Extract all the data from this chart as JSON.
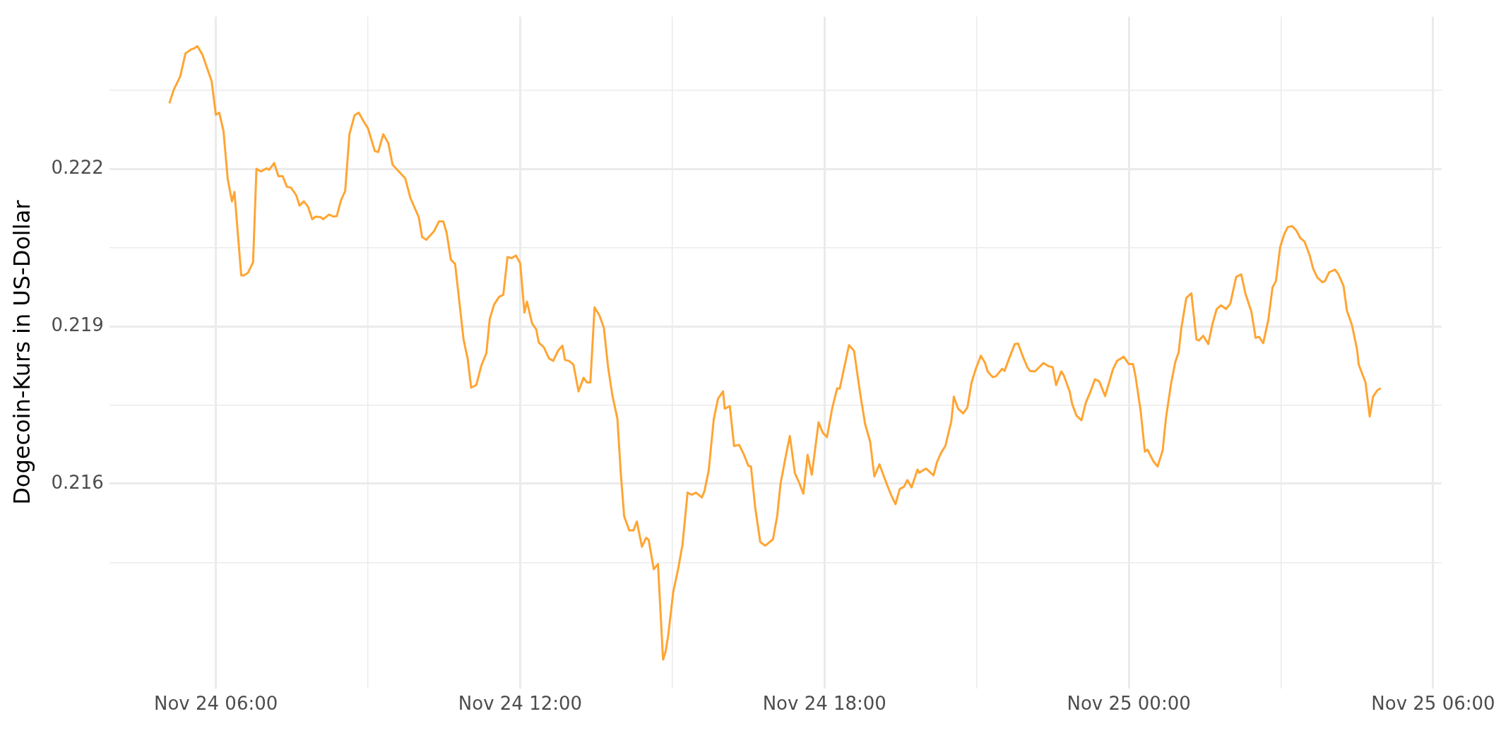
{
  "chart_data": {
    "type": "line",
    "ylabel": "Dogecoin-Kurs in US-Dollar",
    "color": "#ffa533",
    "grid": true,
    "xlim": [
      "--11-24T03:54",
      "--11-25T06:10"
    ],
    "ylim": [
      0.2121,
      0.2249
    ],
    "xticks": [
      {
        "value": "--11-24T06:00",
        "label": "Nov 24 06:00"
      },
      {
        "value": "--11-24T09:00",
        "label": null
      },
      {
        "value": "--11-24T12:00",
        "label": "Nov 24 12:00"
      },
      {
        "value": "--11-24T15:00",
        "label": null
      },
      {
        "value": "--11-24T18:00",
        "label": "Nov 24 18:00"
      },
      {
        "value": "--11-24T21:00",
        "label": null
      },
      {
        "value": "--11-25T00:00",
        "label": "Nov 25 00:00"
      },
      {
        "value": "--11-25T03:00",
        "label": null
      },
      {
        "value": "--11-25T06:00",
        "label": "Nov 25 06:00"
      }
    ],
    "yticks": [
      {
        "value": 0.2145,
        "label": null
      },
      0.216,
      {
        "value": 0.2175,
        "label": null
      },
      0.219,
      {
        "value": 0.2205,
        "label": null
      },
      0.222,
      {
        "value": 0.2235,
        "label": null
      }
    ],
    "x": [
      "--11-24T05:05",
      "--11-24T05:10",
      "--11-24T05:18",
      "--11-24T05:24",
      "--11-24T05:30",
      "--11-24T05:35",
      "--11-24T05:38",
      "--11-24T05:44",
      "--11-24T05:55",
      "--11-24T06:00",
      "--11-24T06:04",
      "--11-24T06:09",
      "--11-24T06:14",
      "--11-24T06:19",
      "--11-24T06:22",
      "--11-24T06:30",
      "--11-24T06:33",
      "--11-24T06:38",
      "--11-24T06:44",
      "--11-24T06:48",
      "--11-24T06:53",
      "--11-24T07:00",
      "--11-24T07:03",
      "--11-24T07:09",
      "--11-24T07:14",
      "--11-24T07:19",
      "--11-24T07:24",
      "--11-24T07:29",
      "--11-24T07:35",
      "--11-24T07:39",
      "--11-24T07:44",
      "--11-24T07:49",
      "--11-24T07:54",
      "--11-24T07:58",
      "--11-24T08:04",
      "--11-24T08:07",
      "--11-24T08:14",
      "--11-24T08:19",
      "--11-24T08:23",
      "--11-24T08:28",
      "--11-24T08:33",
      "--11-24T08:38",
      "--11-24T08:44",
      "--11-24T08:49",
      "--11-24T08:55",
      "--11-24T09:00",
      "--11-24T09:08",
      "--11-24T09:12",
      "--11-24T09:18",
      "--11-24T09:24",
      "--11-24T09:29",
      "--11-24T09:44",
      "--11-24T09:50",
      "--11-24T10:00",
      "--11-24T10:04",
      "--11-24T10:09",
      "--11-24T10:18",
      "--11-24T10:24",
      "--11-24T10:29",
      "--11-24T10:33",
      "--11-24T10:38",
      "--11-24T10:43",
      "--11-24T10:53",
      "--11-24T10:58",
      "--11-24T11:02",
      "--11-24T11:08",
      "--11-24T11:14",
      "--11-24T11:20",
      "--11-24T11:24",
      "--11-24T11:29",
      "--11-24T11:35",
      "--11-24T11:40",
      "--11-24T11:45",
      "--11-24T11:50",
      "--11-24T11:55",
      "--11-24T12:00",
      "--11-24T12:05",
      "--11-24T12:08",
      "--11-24T12:14",
      "--11-24T12:19",
      "--11-24T12:22",
      "--11-24T12:28",
      "--11-24T12:34",
      "--11-24T12:39",
      "--11-24T12:45",
      "--11-24T12:50",
      "--11-24T12:53",
      "--11-24T12:58",
      "--11-24T13:03",
      "--11-24T13:09",
      "--11-24T13:15",
      "--11-24T13:19",
      "--11-24T13:23",
      "--11-24T13:28",
      "--11-24T13:34",
      "--11-24T13:39",
      "--11-24T13:44",
      "--11-24T13:49",
      "--11-24T13:55",
      "--11-24T13:59",
      "--11-24T14:03",
      "--11-24T14:09",
      "--11-24T14:14",
      "--11-24T14:18",
      "--11-24T14:24",
      "--11-24T14:29",
      "--11-24T14:32",
      "--11-24T14:38",
      "--11-24T14:43",
      "--11-24T14:49",
      "--11-24T14:52",
      "--11-24T14:55",
      "--11-24T15:01",
      "--11-24T15:07",
      "--11-24T15:12",
      "--11-24T15:18",
      "--11-24T15:23",
      "--11-24T15:28",
      "--11-24T15:35",
      "--11-24T15:38",
      "--11-24T15:43",
      "--11-24T15:49",
      "--11-24T15:54",
      "--11-24T16:00",
      "--11-24T16:02",
      "--11-24T16:08",
      "--11-24T16:13",
      "--11-24T16:19",
      "--11-24T16:24",
      "--11-24T16:30",
      "--11-24T16:33",
      "--11-24T16:38",
      "--11-24T16:44",
      "--11-24T16:50",
      "--11-24T16:59",
      "--11-24T17:04",
      "--11-24T17:08",
      "--11-24T17:14",
      "--11-24T17:19",
      "--11-24T17:25",
      "--11-24T17:30",
      "--11-24T17:35",
      "--11-24T17:40",
      "--11-24T17:45",
      "--11-24T17:53",
      "--11-24T17:58",
      "--11-24T18:03",
      "--11-24T18:09",
      "--11-24T18:15",
      "--11-24T18:18",
      "--11-24T18:23",
      "--11-24T18:29",
      "--11-24T18:35",
      "--11-24T18:42",
      "--11-24T18:48",
      "--11-24T18:54",
      "--11-24T18:59",
      "--11-24T19:05",
      "--11-24T19:10",
      "--11-24T19:14",
      "--11-24T19:19",
      "--11-24T19:24",
      "--11-24T19:29",
      "--11-24T19:34",
      "--11-24T19:38",
      "--11-24T19:43",
      "--11-24T19:50",
      "--11-24T19:52",
      "--11-24T20:00",
      "--11-24T20:09",
      "--11-24T20:13",
      "--11-24T20:18",
      "--11-24T20:23",
      "--11-24T20:30",
      "--11-24T20:33",
      "--11-24T20:38",
      "--11-24T20:44",
      "--11-24T20:49",
      "--11-24T20:54",
      "--11-24T20:59",
      "--11-24T21:05",
      "--11-24T21:10",
      "--11-24T21:13",
      "--11-24T21:19",
      "--11-24T21:23",
      "--11-24T21:30",
      "--11-24T21:33",
      "--11-24T21:38",
      "--11-24T21:45",
      "--11-24T21:49",
      "--11-24T21:55",
      "--11-24T22:00",
      "--11-24T22:03",
      "--11-24T22:09",
      "--11-24T22:14",
      "--11-24T22:19",
      "--11-24T22:25",
      "--11-24T22:30",
      "--11-24T22:34",
      "--11-24T22:40",
      "--11-24T22:43",
      "--11-24T22:50",
      "--11-24T22:53",
      "--11-24T22:58",
      "--11-24T23:04",
      "--11-24T23:09",
      "--11-24T23:14",
      "--11-24T23:20",
      "--11-24T23:25",
      "--11-24T23:32",
      "--11-24T23:41",
      "--11-24T23:46",
      "--11-24T23:51",
      "--11-24T23:54",
      "--11-25T00:00",
      "--11-25T00:05",
      "--11-25T00:08",
      "--11-25T00:14",
      "--11-25T00:19",
      "--11-25T00:22",
      "--11-25T00:29",
      "--11-25T00:34",
      "--11-25T00:40",
      "--11-25T00:44",
      "--11-25T00:50",
      "--11-25T00:55",
      "--11-25T00:59",
      "--11-25T01:02",
      "--11-25T01:08",
      "--11-25T01:14",
      "--11-25T01:20",
      "--11-25T01:23",
      "--11-25T01:28",
      "--11-25T01:34",
      "--11-25T01:39",
      "--11-25T01:44",
      "--11-25T01:49",
      "--11-25T01:55",
      "--11-25T02:00",
      "--11-25T02:07",
      "--11-25T02:13",
      "--11-25T02:18",
      "--11-25T02:25",
      "--11-25T02:30",
      "--11-25T02:34",
      "--11-25T02:39",
      "--11-25T02:45",
      "--11-25T02:50",
      "--11-25T02:54",
      "--11-25T02:59",
      "--11-25T03:04",
      "--11-25T03:08",
      "--11-25T03:13",
      "--11-25T03:18",
      "--11-25T03:23",
      "--11-25T03:28",
      "--11-25T03:34",
      "--11-25T03:38",
      "--11-25T03:43",
      "--11-25T03:49",
      "--11-25T03:52",
      "--11-25T03:57",
      "--11-25T04:04",
      "--11-25T04:08",
      "--11-25T04:14",
      "--11-25T04:18",
      "--11-25T04:24",
      "--11-25T04:30",
      "--11-25T04:32",
      "--11-25T04:40",
      "--11-25T04:45",
      "--11-25T04:49",
      "--11-25T04:54",
      "--11-25T04:58"
    ],
    "values": [
      0.22325,
      0.2235,
      0.22377,
      0.2242,
      0.22427,
      0.2243,
      0.22434,
      0.22418,
      0.22367,
      0.22303,
      0.22307,
      0.22272,
      0.22181,
      0.22138,
      0.22156,
      0.21997,
      0.21997,
      0.22002,
      0.22022,
      0.222,
      0.22195,
      0.22201,
      0.22198,
      0.22211,
      0.22186,
      0.22186,
      0.22166,
      0.22164,
      0.2215,
      0.2213,
      0.22138,
      0.22128,
      0.22104,
      0.22109,
      0.22108,
      0.22104,
      0.22113,
      0.22109,
      0.2211,
      0.2214,
      0.22158,
      0.22266,
      0.22302,
      0.22307,
      0.2229,
      0.22277,
      0.22234,
      0.22232,
      0.22266,
      0.22249,
      0.22208,
      0.22182,
      0.22145,
      0.22108,
      0.2207,
      0.22065,
      0.22081,
      0.221,
      0.221,
      0.22078,
      0.22027,
      0.22019,
      0.21875,
      0.21837,
      0.21783,
      0.21788,
      0.21825,
      0.21849,
      0.21914,
      0.21941,
      0.21956,
      0.2196,
      0.22032,
      0.2203,
      0.22035,
      0.2202,
      0.21926,
      0.21947,
      0.21906,
      0.21894,
      0.21869,
      0.2186,
      0.21839,
      0.21834,
      0.21854,
      0.21863,
      0.21836,
      0.21834,
      0.21827,
      0.21776,
      0.21802,
      0.21793,
      0.21793,
      0.21936,
      0.2192,
      0.21897,
      0.21822,
      0.21769,
      0.21724,
      0.2162,
      0.21538,
      0.21511,
      0.21511,
      0.21528,
      0.2148,
      0.21497,
      0.21493,
      0.21437,
      0.21447,
      0.21265,
      0.2128,
      0.2131,
      0.21393,
      0.21439,
      0.21484,
      0.21583,
      0.21579,
      0.21583,
      0.21574,
      0.21586,
      0.21625,
      0.21723,
      0.21762,
      0.21776,
      0.21743,
      0.21748,
      0.21672,
      0.21674,
      0.21658,
      0.21634,
      0.21633,
      0.21555,
      0.21489,
      0.21482,
      0.21494,
      0.21538,
      0.216,
      0.21651,
      0.21691,
      0.2162,
      0.21602,
      0.21581,
      0.21655,
      0.21617,
      0.21717,
      0.21697,
      0.21689,
      0.21743,
      0.21782,
      0.21781,
      0.21819,
      0.21864,
      0.21853,
      0.21774,
      0.21714,
      0.2168,
      0.21614,
      0.21637,
      0.21615,
      0.21598,
      0.21578,
      0.21561,
      0.2159,
      0.21594,
      0.21607,
      0.21593,
      0.21627,
      0.21621,
      0.21629,
      0.21616,
      0.21641,
      0.21659,
      0.21672,
      0.21719,
      0.21766,
      0.21743,
      0.21734,
      0.21745,
      0.21793,
      0.21819,
      0.21844,
      0.2183,
      0.21814,
      0.21803,
      0.21805,
      0.21819,
      0.21815,
      0.21837,
      0.21866,
      0.21867,
      0.21841,
      0.21822,
      0.21815,
      0.21814,
      0.21822,
      0.2183,
      0.21824,
      0.21822,
      0.21788,
      0.21814,
      0.21807,
      0.21776,
      0.21752,
      0.2173,
      0.21721,
      0.21754,
      0.21773,
      0.21799,
      0.21795,
      0.21767,
      0.21817,
      0.21834,
      0.21839,
      0.21842,
      0.21828,
      0.21828,
      0.21804,
      0.21739,
      0.21661,
      0.21665,
      0.21643,
      0.21633,
      0.21663,
      0.21726,
      0.21791,
      0.21832,
      0.21851,
      0.21895,
      0.21954,
      0.21963,
      0.21875,
      0.21873,
      0.21882,
      0.21866,
      0.21905,
      0.21933,
      0.2194,
      0.21933,
      0.21943,
      0.21994,
      0.21999,
      0.21962,
      0.21928,
      0.21878,
      0.2188,
      0.21868,
      0.21912,
      0.21974,
      0.21986,
      0.22051,
      0.22076,
      0.22089,
      0.22091,
      0.22083,
      0.22068,
      0.22061,
      0.22035,
      0.2201,
      0.21993,
      0.21984,
      0.21986,
      0.22003,
      0.22008,
      0.21999,
      0.21977,
      0.2193,
      0.21902,
      0.21856,
      0.21827,
      0.21793,
      0.21728,
      0.21766,
      0.21778,
      0.21782
    ]
  }
}
